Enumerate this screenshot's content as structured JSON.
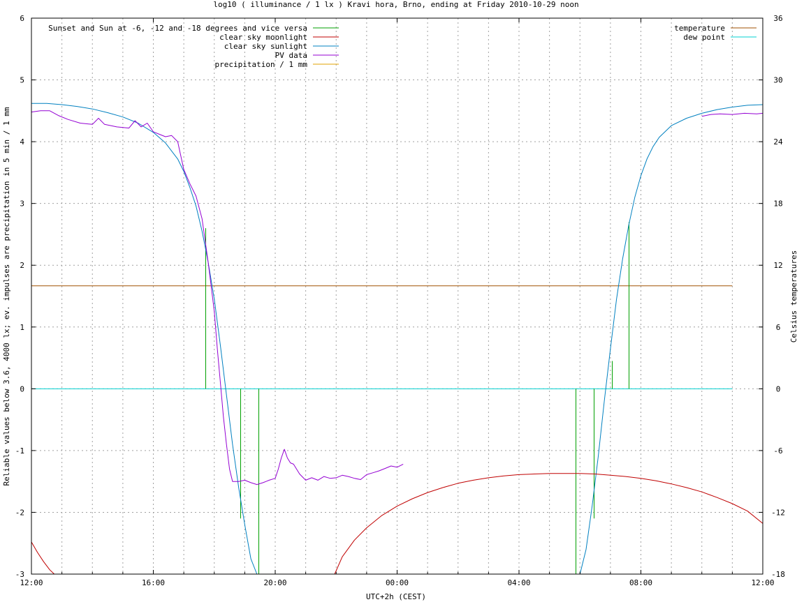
{
  "chart_data": {
    "type": "line",
    "title": "log10 ( illuminance / 1 lx ) Kravi hora, Brno, ending at Friday 2010-10-29 noon",
    "xlabel": "UTC+2h (CEST)",
    "ylabel": "Reliable values below 3.6, 4000 lx; ev. impulses are precipitation in 5 min / 1 mm",
    "y2label": "Celsius temperatures",
    "xlim": [
      12,
      36
    ],
    "ylim": [
      -3,
      6
    ],
    "y2lim": [
      -18,
      36
    ],
    "x_ticks": [
      {
        "x": 12,
        "label": "12:00"
      },
      {
        "x": 16,
        "label": "16:00"
      },
      {
        "x": 20,
        "label": "20:00"
      },
      {
        "x": 24,
        "label": "00:00"
      },
      {
        "x": 28,
        "label": "04:00"
      },
      {
        "x": 32,
        "label": "08:00"
      },
      {
        "x": 36,
        "label": "12:00"
      }
    ],
    "y_ticks": [
      {
        "y": -3,
        "label": "-3"
      },
      {
        "y": -2,
        "label": "-2"
      },
      {
        "y": -1,
        "label": "-1"
      },
      {
        "y": 0,
        "label": "0"
      },
      {
        "y": 1,
        "label": "1"
      },
      {
        "y": 2,
        "label": "2"
      },
      {
        "y": 3,
        "label": "3"
      },
      {
        "y": 4,
        "label": "4"
      },
      {
        "y": 5,
        "label": "5"
      },
      {
        "y": 6,
        "label": "6"
      }
    ],
    "y2_ticks": [
      {
        "y": -18,
        "label": "-18"
      },
      {
        "y": -12,
        "label": "-12"
      },
      {
        "y": -6,
        "label": "-6"
      },
      {
        "y": 0,
        "label": "0"
      },
      {
        "y": 6,
        "label": "6"
      },
      {
        "y": 12,
        "label": "12"
      },
      {
        "y": 18,
        "label": "18"
      },
      {
        "y": 24,
        "label": "24"
      },
      {
        "y": 30,
        "label": "30"
      },
      {
        "y": 36,
        "label": "36"
      }
    ],
    "grid": true,
    "legend_left": {
      "placement": "top-left",
      "entries": [
        {
          "label": "Sunset and Sun at -6, -12 and -18 degrees and vice versa",
          "color": "#00a000"
        },
        {
          "label": "clear sky moonlight",
          "color": "#c00000"
        },
        {
          "label": "clear sky sunlight",
          "color": "#0080c0"
        },
        {
          "label": "PV data",
          "color": "#9400d3"
        },
        {
          "label": "precipitation / 1 mm",
          "color": "#e0a000"
        }
      ]
    },
    "legend_right": {
      "placement": "top-right",
      "entries": [
        {
          "label": "temperature",
          "color": "#a05000"
        },
        {
          "label": "dew point",
          "color": "#00d0d0"
        }
      ]
    },
    "series": [
      {
        "name": "clear sky sunlight",
        "color": "#0080c0",
        "x": [
          12.0,
          12.5,
          13.0,
          13.5,
          14.0,
          14.5,
          15.0,
          15.5,
          16.0,
          16.4,
          16.8,
          17.0,
          17.2,
          17.4,
          17.6,
          17.8,
          18.0,
          18.2,
          18.4,
          18.6,
          18.8,
          19.0,
          19.2,
          19.4
        ],
        "y": [
          4.62,
          4.62,
          4.6,
          4.57,
          4.53,
          4.47,
          4.4,
          4.3,
          4.15,
          3.98,
          3.72,
          3.52,
          3.26,
          2.96,
          2.55,
          2.05,
          1.45,
          0.7,
          -0.1,
          -0.9,
          -1.6,
          -2.2,
          -2.75,
          -3.0
        ]
      },
      {
        "name": "clear sky sunlight",
        "color": "#0080c0",
        "x": [
          30.0,
          30.2,
          30.4,
          30.6,
          30.8,
          31.0,
          31.2,
          31.4,
          31.6,
          31.8,
          32.0,
          32.2,
          32.4,
          32.6,
          33.0,
          33.5,
          34.0,
          34.5,
          35.0,
          35.5,
          36.0
        ],
        "y": [
          -3.0,
          -2.6,
          -1.9,
          -1.1,
          -0.2,
          0.65,
          1.45,
          2.1,
          2.65,
          3.1,
          3.45,
          3.72,
          3.92,
          4.07,
          4.26,
          4.38,
          4.46,
          4.52,
          4.56,
          4.59,
          4.6
        ]
      },
      {
        "name": "clear sky moonlight",
        "color": "#c00000",
        "x": [
          12.0,
          12.2,
          12.4,
          12.6,
          12.75
        ],
        "y": [
          -2.48,
          -2.65,
          -2.8,
          -2.93,
          -3.0
        ]
      },
      {
        "name": "clear sky moonlight",
        "color": "#c00000",
        "x": [
          21.95,
          22.2,
          22.6,
          23.0,
          23.5,
          24.0,
          24.5,
          25.0,
          25.5,
          26.0,
          26.5,
          27.0,
          27.5,
          28.0,
          28.5,
          29.0,
          29.5,
          30.0,
          30.5,
          31.0,
          31.5,
          32.0,
          32.5,
          33.0,
          33.5,
          34.0,
          34.5,
          35.0,
          35.5,
          36.0
        ],
        "y": [
          -3.0,
          -2.72,
          -2.45,
          -2.25,
          -2.05,
          -1.9,
          -1.78,
          -1.68,
          -1.6,
          -1.53,
          -1.48,
          -1.44,
          -1.41,
          -1.39,
          -1.38,
          -1.37,
          -1.37,
          -1.37,
          -1.38,
          -1.4,
          -1.42,
          -1.45,
          -1.49,
          -1.54,
          -1.6,
          -1.67,
          -1.76,
          -1.86,
          -1.98,
          -2.18
        ]
      },
      {
        "name": "PV data",
        "color": "#9400d3",
        "x": [
          12.0,
          12.3,
          12.6,
          12.9,
          13.2,
          13.6,
          14.0,
          14.2,
          14.4,
          14.8,
          15.2,
          15.4,
          15.6,
          15.8,
          16.0,
          16.2,
          16.4,
          16.6,
          16.8,
          17.0,
          17.2,
          17.4,
          17.6,
          17.8,
          18.0,
          18.1,
          18.2,
          18.3,
          18.4,
          18.5,
          18.6,
          18.8,
          19.0,
          19.2,
          19.4,
          19.6,
          19.8,
          20.0,
          20.1,
          20.2,
          20.3,
          20.4,
          20.5,
          20.6,
          20.8,
          21.0,
          21.2,
          21.4,
          21.6,
          21.8,
          22.0,
          22.2,
          22.4,
          22.6,
          22.8,
          23.0,
          23.2,
          23.4,
          23.6,
          23.8,
          24.0,
          24.2
        ],
        "y": [
          4.48,
          4.5,
          4.5,
          4.42,
          4.36,
          4.3,
          4.28,
          4.38,
          4.28,
          4.24,
          4.22,
          4.34,
          4.24,
          4.3,
          4.16,
          4.12,
          4.08,
          4.1,
          4.0,
          3.55,
          3.32,
          3.12,
          2.75,
          2.05,
          1.25,
          0.65,
          0.1,
          -0.45,
          -0.9,
          -1.3,
          -1.5,
          -1.5,
          -1.48,
          -1.52,
          -1.55,
          -1.52,
          -1.48,
          -1.45,
          -1.3,
          -1.12,
          -0.98,
          -1.12,
          -1.2,
          -1.22,
          -1.38,
          -1.48,
          -1.44,
          -1.48,
          -1.42,
          -1.45,
          -1.44,
          -1.4,
          -1.42,
          -1.45,
          -1.47,
          -1.39,
          -1.36,
          -1.33,
          -1.29,
          -1.25,
          -1.27,
          -1.22
        ]
      },
      {
        "name": "PV data",
        "color": "#9400d3",
        "x": [
          34.0,
          34.3,
          34.6,
          35.0,
          35.4,
          35.8,
          36.0
        ],
        "y": [
          4.41,
          4.44,
          4.45,
          4.44,
          4.46,
          4.45,
          4.46
        ]
      }
    ],
    "temperature": {
      "color": "#a05000",
      "x": [
        12.0,
        35.0
      ],
      "y": [
        10.0,
        10.0
      ]
    },
    "dew_point": {
      "color": "#00d0d0",
      "x": [
        12.0,
        35.0
      ],
      "y": [
        0.0,
        0.0
      ]
    },
    "sun_impulses": {
      "color": "#00a000",
      "items": [
        {
          "x": 17.7,
          "y": 2.6
        },
        {
          "x": 18.85,
          "y": -2.1
        },
        {
          "x": 19.45,
          "y": -3.0
        },
        {
          "x": 29.85,
          "y": -3.0
        },
        {
          "x": 30.45,
          "y": -2.1
        },
        {
          "x": 31.05,
          "y": 0.45
        },
        {
          "x": 31.6,
          "y": 2.7
        }
      ]
    }
  }
}
